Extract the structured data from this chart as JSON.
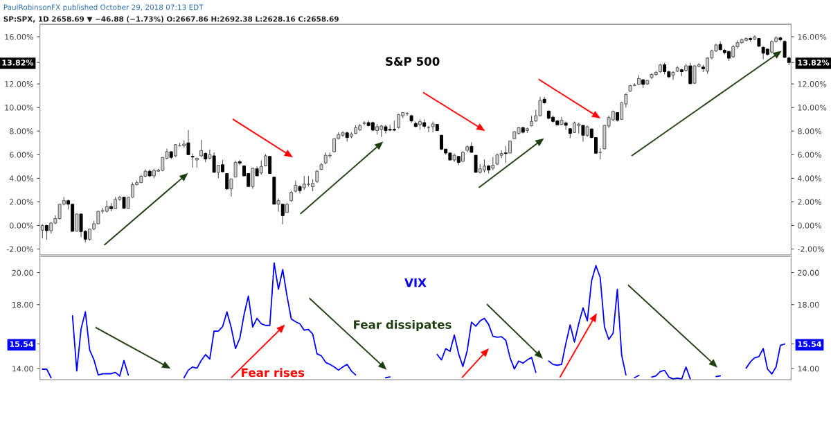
{
  "chart_data": [
    {
      "type": "candlestick",
      "title": "S&P 500",
      "annotations": [
        "PaulRobinsonFX published October 29, 2018 07:13 EDT",
        "SP:SPX, 1D 2658.69 ▼ −46.88 (−1.73%) O:2667.86 H:2692.38 L:2628.16 C:2658.69"
      ],
      "categories": [
        null,
        null,
        null,
        null,
        null,
        null,
        null,
        null,
        null,
        null,
        null,
        null,
        null,
        null,
        null,
        null,
        null,
        null,
        null,
        null,
        null,
        null,
        null,
        null,
        null,
        null,
        null,
        null,
        null,
        null,
        null,
        null,
        null,
        null,
        null,
        null,
        null,
        null,
        null,
        null,
        null,
        null,
        null,
        null,
        null,
        null,
        null,
        null,
        null,
        null,
        null,
        null,
        null,
        null,
        null,
        null,
        null,
        null,
        null,
        null,
        null,
        null,
        null,
        null,
        null,
        null,
        null,
        null,
        null,
        null,
        null,
        null,
        null,
        null,
        null,
        null,
        null,
        null,
        null,
        null,
        null,
        null,
        null,
        null,
        null,
        null,
        null,
        null,
        null,
        null,
        null,
        null,
        null,
        null,
        null,
        null,
        null,
        null,
        null,
        null,
        null,
        null,
        null,
        null,
        null,
        null,
        null,
        null,
        null,
        null,
        null,
        null,
        null,
        null,
        null,
        null,
        null,
        null,
        null,
        null,
        null,
        null,
        null,
        null,
        null,
        null,
        null,
        null,
        null,
        null,
        null,
        null,
        null,
        null,
        null,
        null,
        null,
        null,
        null,
        null,
        null,
        null,
        null,
        null,
        null,
        null,
        null,
        null,
        null,
        null,
        null,
        null,
        null,
        null,
        null,
        null,
        null,
        null,
        null,
        null,
        null,
        null,
        null,
        null,
        null,
        null,
        null,
        null,
        null,
        null,
        null,
        null,
        null,
        null,
        null
      ],
      "ohlc": [
        [
          -0.4,
          0.1,
          -1.1,
          0.0
        ],
        [
          0.0,
          0.05,
          -1.2,
          -0.45
        ],
        [
          -0.45,
          0.3,
          -0.7,
          0.2
        ],
        [
          0.2,
          0.85,
          0.1,
          0.58
        ],
        [
          0.58,
          1.85,
          0.5,
          1.8
        ],
        [
          1.8,
          2.4,
          1.7,
          2.1
        ],
        [
          2.1,
          2.2,
          1.35,
          1.8
        ],
        [
          1.8,
          1.8,
          -0.5,
          -0.5
        ],
        [
          -0.5,
          1.0,
          -0.5,
          0.97
        ],
        [
          0.97,
          1.0,
          -1.0,
          -0.52
        ],
        [
          -0.5,
          -0.4,
          -1.45,
          -1.17
        ],
        [
          -1.17,
          -0.3,
          -1.3,
          -0.3
        ],
        [
          -0.3,
          0.4,
          -0.4,
          0.14
        ],
        [
          0.14,
          1.25,
          0.1,
          1.2
        ],
        [
          1.2,
          1.5,
          1.0,
          1.25
        ],
        [
          1.2,
          2.1,
          1.1,
          1.6
        ],
        [
          1.6,
          1.9,
          1.2,
          1.42
        ],
        [
          1.42,
          2.4,
          1.4,
          2.2
        ],
        [
          2.2,
          2.5,
          2.1,
          2.4
        ],
        [
          2.4,
          2.4,
          1.4,
          1.45
        ],
        [
          1.45,
          2.4,
          1.4,
          2.4
        ],
        [
          2.4,
          3.65,
          2.35,
          3.45
        ],
        [
          3.45,
          3.8,
          3.4,
          3.63
        ],
        [
          3.63,
          4.3,
          3.6,
          4.17
        ],
        [
          4.17,
          4.75,
          4.1,
          4.6
        ],
        [
          4.6,
          4.75,
          4.1,
          4.2
        ],
        [
          4.2,
          4.8,
          4.0,
          4.66
        ],
        [
          4.6,
          4.8,
          4.55,
          4.7
        ],
        [
          4.66,
          5.8,
          4.6,
          5.77
        ],
        [
          5.7,
          6.5,
          5.6,
          6.25
        ],
        [
          6.25,
          6.3,
          5.6,
          5.77
        ],
        [
          5.9,
          6.9,
          5.8,
          6.85
        ],
        [
          6.75,
          7.0,
          6.7,
          6.75
        ],
        [
          6.75,
          7.2,
          6.6,
          6.9
        ],
        [
          7.0,
          8.1,
          6.0,
          6.0
        ],
        [
          5.85,
          6.1,
          4.9,
          5.8
        ],
        [
          5.55,
          5.75,
          4.9,
          5.7
        ],
        [
          5.9,
          7.25,
          5.8,
          6.35
        ],
        [
          6.1,
          6.2,
          5.35,
          5.63
        ],
        [
          5.7,
          6.45,
          5.6,
          6.0
        ],
        [
          5.9,
          6.2,
          4.5,
          4.5
        ],
        [
          4.5,
          5.1,
          4.0,
          5.1
        ],
        [
          5.15,
          5.55,
          4.5,
          4.55
        ],
        [
          4.4,
          4.4,
          3.0,
          3.1
        ],
        [
          3.1,
          3.95,
          2.45,
          3.95
        ],
        [
          4.1,
          5.5,
          4.1,
          5.35
        ],
        [
          5.4,
          5.55,
          5.1,
          5.28
        ],
        [
          5.05,
          5.1,
          4.2,
          4.2
        ],
        [
          4.4,
          4.4,
          3.3,
          3.3
        ],
        [
          3.3,
          4.9,
          3.1,
          4.85
        ],
        [
          4.8,
          5.0,
          4.2,
          4.2
        ],
        [
          4.45,
          5.5,
          4.3,
          5.0
        ],
        [
          5.05,
          6.05,
          5.0,
          5.9
        ],
        [
          5.85,
          5.9,
          4.4,
          4.4
        ],
        [
          4.1,
          4.1,
          1.8,
          1.8
        ],
        [
          1.8,
          2.3,
          1.15,
          2.1
        ],
        [
          1.8,
          1.8,
          0.1,
          0.83
        ],
        [
          1.1,
          1.9,
          1.1,
          1.8
        ],
        [
          2.1,
          2.95,
          2.0,
          2.8
        ],
        [
          2.9,
          3.8,
          2.8,
          3.4
        ],
        [
          3.3,
          3.4,
          2.7,
          2.95
        ],
        [
          3.2,
          4.2,
          3.0,
          3.5
        ],
        [
          3.48,
          4.2,
          3.3,
          3.5
        ],
        [
          3.28,
          3.9,
          2.9,
          3.57
        ],
        [
          3.73,
          4.7,
          3.6,
          4.6
        ],
        [
          4.75,
          5.3,
          4.7,
          5.15
        ],
        [
          5.3,
          6.2,
          5.2,
          5.95
        ],
        [
          5.9,
          6.2,
          5.7,
          5.95
        ],
        [
          6.25,
          7.4,
          6.2,
          7.35
        ],
        [
          7.35,
          7.9,
          7.3,
          7.7
        ],
        [
          7.65,
          8.0,
          7.5,
          7.85
        ],
        [
          7.85,
          7.95,
          7.1,
          7.45
        ],
        [
          7.55,
          7.9,
          7.4,
          7.75
        ],
        [
          7.8,
          8.5,
          7.75,
          8.3
        ],
        [
          8.1,
          8.6,
          8.0,
          8.45
        ],
        [
          8.65,
          8.85,
          8.5,
          8.7
        ],
        [
          8.72,
          8.9,
          8.4,
          8.47
        ],
        [
          8.72,
          8.8,
          8.0,
          8.08
        ],
        [
          8.05,
          8.6,
          7.7,
          8.37
        ],
        [
          8.14,
          8.55,
          7.5,
          8.43
        ],
        [
          8.37,
          8.55,
          7.8,
          8.04
        ],
        [
          8.15,
          8.53,
          8.0,
          8.08
        ],
        [
          8.15,
          8.88,
          8.0,
          8.08
        ],
        [
          8.3,
          9.45,
          8.2,
          9.4
        ],
        [
          9.3,
          9.6,
          9.1,
          9.57
        ],
        [
          9.5,
          9.6,
          9.3,
          9.5
        ],
        [
          9.3,
          9.4,
          8.7,
          8.86
        ],
        [
          8.65,
          8.8,
          8.3,
          8.4
        ],
        [
          8.55,
          9.0,
          8.1,
          8.8
        ],
        [
          8.72,
          9.0,
          8.2,
          8.41
        ],
        [
          8.3,
          8.45,
          7.9,
          8.3
        ],
        [
          8.37,
          8.8,
          7.9,
          8.6
        ],
        [
          8.57,
          8.6,
          8.0,
          8.04
        ],
        [
          7.65,
          7.65,
          6.4,
          6.47
        ],
        [
          6.47,
          6.5,
          6.0,
          6.14
        ],
        [
          6.14,
          6.2,
          5.5,
          5.55
        ],
        [
          5.55,
          6.1,
          5.4,
          5.95
        ],
        [
          5.85,
          5.9,
          5.1,
          5.35
        ],
        [
          5.43,
          6.3,
          5.4,
          6.2
        ],
        [
          6.37,
          6.8,
          6.2,
          6.67
        ],
        [
          6.7,
          7.05,
          6.15,
          6.2
        ],
        [
          5.95,
          5.95,
          4.5,
          4.5
        ],
        [
          4.5,
          5.2,
          4.4,
          4.8
        ],
        [
          4.7,
          5.6,
          4.5,
          5.03
        ],
        [
          5.05,
          5.1,
          4.4,
          4.7
        ],
        [
          4.85,
          5.8,
          4.7,
          5.1
        ],
        [
          5.2,
          6.1,
          5.1,
          5.98
        ],
        [
          5.95,
          6.35,
          5.7,
          6.1
        ],
        [
          6.15,
          6.75,
          5.3,
          6.1
        ],
        [
          6.15,
          7.2,
          6.1,
          7.15
        ],
        [
          7.35,
          8.0,
          7.3,
          7.95
        ],
        [
          7.8,
          8.35,
          7.7,
          8.3
        ],
        [
          8.3,
          8.35,
          7.8,
          7.9
        ],
        [
          8.05,
          8.3,
          7.85,
          8.2
        ],
        [
          8.45,
          9.3,
          8.4,
          8.82
        ],
        [
          8.85,
          9.8,
          8.8,
          9.3
        ],
        [
          9.3,
          10.9,
          9.25,
          10.6
        ],
        [
          10.7,
          10.9,
          10.3,
          10.4
        ],
        [
          9.7,
          9.75,
          9.0,
          9.08
        ],
        [
          9.18,
          9.3,
          8.7,
          8.82
        ],
        [
          8.86,
          8.95,
          8.5,
          8.53
        ],
        [
          8.57,
          9.2,
          8.5,
          8.92
        ],
        [
          8.69,
          8.8,
          8.1,
          8.49
        ],
        [
          8.2,
          8.25,
          7.4,
          7.8
        ],
        [
          7.88,
          8.8,
          7.85,
          8.69
        ],
        [
          8.47,
          8.7,
          7.8,
          8.59
        ],
        [
          8.49,
          8.5,
          7.1,
          7.65
        ],
        [
          7.65,
          8.45,
          7.5,
          8.37
        ],
        [
          8.18,
          8.2,
          7.4,
          7.45
        ],
        [
          7.45,
          7.45,
          6.1,
          6.12
        ],
        [
          6.2,
          6.55,
          5.6,
          6.2
        ],
        [
          6.5,
          8.55,
          6.45,
          8.49
        ],
        [
          8.43,
          9.3,
          8.25,
          9.15
        ],
        [
          8.96,
          9.75,
          8.85,
          9.67
        ],
        [
          9.57,
          9.6,
          8.8,
          8.92
        ],
        [
          9.0,
          10.45,
          9.0,
          10.4
        ],
        [
          10.3,
          11.2,
          10.0,
          11.1
        ],
        [
          11.4,
          11.9,
          11.3,
          11.85
        ],
        [
          11.88,
          12.05,
          11.8,
          11.9
        ],
        [
          11.96,
          12.75,
          11.9,
          12.45
        ],
        [
          12.35,
          12.4,
          11.65,
          11.96
        ],
        [
          12.0,
          12.35,
          11.9,
          12.3
        ],
        [
          12.55,
          12.9,
          12.4,
          12.8
        ],
        [
          12.8,
          13.1,
          12.7,
          12.98
        ],
        [
          13.04,
          13.7,
          12.95,
          13.6
        ],
        [
          13.63,
          13.8,
          12.8,
          13.04
        ],
        [
          13.04,
          13.1,
          12.5,
          12.6
        ],
        [
          12.75,
          13.1,
          12.35,
          12.98
        ],
        [
          13.08,
          13.5,
          13.0,
          13.37
        ],
        [
          13.2,
          13.3,
          12.65,
          13.04
        ],
        [
          13.14,
          13.7,
          13.05,
          13.53
        ],
        [
          13.53,
          13.8,
          12.0,
          12.02
        ],
        [
          12.06,
          13.6,
          12.0,
          13.53
        ],
        [
          13.49,
          13.75,
          13.4,
          13.63
        ],
        [
          13.43,
          13.63,
          13.0,
          13.27
        ],
        [
          13.08,
          14.25,
          12.85,
          14.2
        ],
        [
          14.2,
          14.9,
          14.1,
          14.8
        ],
        [
          14.8,
          15.4,
          14.7,
          15.3
        ],
        [
          15.35,
          15.6,
          14.85,
          14.9
        ],
        [
          14.85,
          14.95,
          14.5,
          14.65
        ],
        [
          14.75,
          14.8,
          13.95,
          14.18
        ],
        [
          14.3,
          15.3,
          14.2,
          15.15
        ],
        [
          15.15,
          15.7,
          15.0,
          15.5
        ],
        [
          15.5,
          15.85,
          15.4,
          15.75
        ],
        [
          15.7,
          15.95,
          15.6,
          15.85
        ],
        [
          15.85,
          15.95,
          15.6,
          15.75
        ],
        [
          15.8,
          16.1,
          15.7,
          16.0
        ],
        [
          15.85,
          15.9,
          15.1,
          15.2
        ],
        [
          15.1,
          15.2,
          14.1,
          14.6
        ],
        [
          14.95,
          15.0,
          14.4,
          14.5
        ],
        [
          14.7,
          15.7,
          14.6,
          15.6
        ],
        [
          15.6,
          16.05,
          15.5,
          15.9
        ],
        [
          15.9,
          16.0,
          15.6,
          15.75
        ],
        [
          15.6,
          15.7,
          14.2,
          14.25
        ],
        [
          14.2,
          14.3,
          13.6,
          13.82
        ]
      ],
      "ylim": [
        -2.5,
        17.05
      ],
      "yticks": [
        {
          "value": -2,
          "label": "-2.00%"
        },
        {
          "value": 0,
          "label": "0.00%"
        },
        {
          "value": 2,
          "label": "2.00%"
        },
        {
          "value": 4,
          "label": "4.00%"
        },
        {
          "value": 6,
          "label": "6.00%"
        },
        {
          "value": 8,
          "label": "8.00%"
        },
        {
          "value": 10,
          "label": "10.00%"
        },
        {
          "value": 12,
          "label": "12.00%"
        },
        {
          "value": 13.82,
          "label": "13.82%"
        },
        {
          "value": 16,
          "label": "16.00%"
        }
      ],
      "y2lim": [
        -2.5,
        17.05
      ],
      "y2ticks": [
        {
          "value": -2,
          "label": "-2.00%"
        },
        {
          "value": 0,
          "label": "0.00%"
        },
        {
          "value": 2,
          "label": "2.00%"
        },
        {
          "value": 4,
          "label": "4.00%"
        },
        {
          "value": 6,
          "label": "6.00%"
        },
        {
          "value": 8,
          "label": "8.00%"
        },
        {
          "value": 10,
          "label": "10.00%"
        },
        {
          "value": 12,
          "label": "12.00%"
        },
        {
          "value": 13.82,
          "label": "13.82%"
        },
        {
          "value": 16,
          "label": "16.00%"
        }
      ]
    },
    {
      "type": "line",
      "title": "VIX",
      "annotations": [
        "Fear dissipates",
        "Fear rises"
      ],
      "categories": [
        null,
        null,
        null,
        null,
        null,
        null,
        null,
        null,
        null,
        null,
        null,
        null,
        null,
        null,
        null,
        null,
        null,
        null,
        null,
        null,
        null,
        null,
        null,
        null,
        null,
        null,
        null,
        null,
        null,
        null,
        null,
        null,
        null,
        null,
        null,
        null,
        null,
        null,
        null,
        null,
        null,
        null,
        null,
        null,
        null,
        null,
        null,
        null,
        null,
        null,
        null,
        null,
        null,
        null,
        null,
        null,
        null,
        null,
        null,
        null,
        null,
        null,
        null,
        null,
        null,
        null,
        null,
        null,
        null,
        null,
        null,
        null,
        null,
        null,
        null,
        null,
        null,
        null,
        null,
        null,
        null,
        null,
        null,
        null,
        null,
        null,
        null,
        null,
        null,
        null,
        null,
        null,
        null,
        null,
        null,
        null,
        null,
        null,
        null,
        null,
        null,
        null,
        null,
        null,
        null,
        null,
        null,
        null,
        null,
        null,
        null,
        null,
        null,
        null,
        null,
        null,
        null,
        null,
        null,
        null,
        null,
        null,
        null,
        null,
        null,
        null,
        null,
        null,
        null,
        null,
        null,
        null,
        null,
        null,
        null,
        null,
        null,
        null,
        null,
        null,
        null,
        null,
        null,
        null,
        null,
        null,
        null,
        null,
        null,
        null,
        null,
        null,
        null,
        null,
        null,
        null,
        null,
        null,
        null,
        null,
        null,
        null,
        null,
        null,
        null,
        null,
        null,
        null,
        null,
        null,
        null,
        null,
        null,
        null,
        null
      ],
      "series": [
        {
          "color": "#0000ff",
          "values": [
            13.96,
            13.96,
            13.43,
            null,
            null,
            null,
            null,
            17.3,
            13.85,
            16.48,
            17.55,
            15.16,
            14.55,
            13.6,
            13.67,
            13.68,
            13.68,
            13.76,
            13.54,
            14.5,
            13.6,
            null,
            null,
            null,
            null,
            null,
            null,
            null,
            null,
            null,
            null,
            null,
            null,
            13.43,
            13.9,
            14.1,
            14.02,
            14.5,
            14.87,
            14.6,
            16.35,
            16.34,
            16.63,
            17.55,
            16.56,
            15.25,
            15.89,
            17.39,
            18.54,
            16.6,
            17.14,
            16.8,
            16.7,
            16.7,
            20.6,
            18.96,
            20.19,
            18.54,
            17.1,
            16.93,
            16.8,
            16.4,
            16.45,
            16.15,
            14.92,
            14.8,
            14.39,
            14.26,
            14.1,
            13.9,
            14.1,
            14.26,
            13.85,
            13.6,
            null,
            null,
            null,
            null,
            null,
            null,
            13.43,
            13.48,
            null,
            null,
            null,
            null,
            null,
            null,
            null,
            null,
            null,
            null,
            14.88,
            14.54,
            15.25,
            15.08,
            16.1,
            14.92,
            14.13,
            15.11,
            16.9,
            16.65,
            16.98,
            17.14,
            16.76,
            16.02,
            15.96,
            15.99,
            15.77,
            14.67,
            13.98,
            14.47,
            14.34,
            14.54,
            14.7,
            13.76,
            null,
            null,
            14.47,
            14.26,
            14.21,
            14.26,
            15.58,
            16.73,
            15.66,
            16.81,
            17.8,
            16.98,
            19.5,
            20.44,
            19.7,
            16.6,
            15.82,
            16.2,
            18.96,
            14.84,
            13.6,
            null,
            13.43,
            13.57,
            null,
            null,
            13.47,
            13.54,
            13.81,
            13.89,
            13.47,
            13.35,
            13.4,
            13.35,
            14.1,
            13.35,
            null,
            null,
            null,
            null,
            null,
            13.5,
            13.54,
            null,
            null,
            null,
            null,
            null,
            14.02,
            14.42,
            14.67,
            14.75,
            15.25,
            13.97,
            13.66,
            14.1,
            15.45,
            15.54,
            null
          ]
        }
      ],
      "ylim": [
        13.3,
        21.0
      ],
      "yticks": [
        {
          "value": 14,
          "label": "14.00"
        },
        {
          "value": 15.54,
          "label": "15.54"
        },
        {
          "value": 18,
          "label": "18.00"
        },
        {
          "value": 20,
          "label": "20.00"
        }
      ],
      "y2lim": [
        13.3,
        21.0
      ],
      "y2ticks": [
        {
          "value": 14,
          "label": "14.00"
        },
        {
          "value": 15.54,
          "label": "15.54"
        },
        {
          "value": 18,
          "label": "18.00"
        },
        {
          "value": 20,
          "label": "20.00"
        }
      ]
    }
  ]
}
